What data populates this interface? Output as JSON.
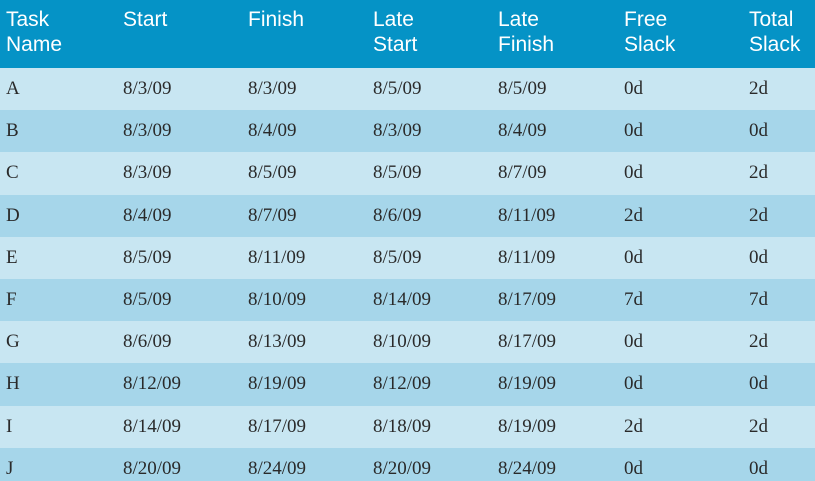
{
  "header": {
    "columns": [
      "Task\nName",
      "Start",
      "Finish",
      "Late\nStart",
      "Late\nFinish",
      "Free\nSlack",
      "Total\nSlack"
    ]
  },
  "colors": {
    "header_bg": "#0593c6",
    "row_light": "#c8e6f2",
    "row_dark": "#a6d6ea"
  },
  "rows": [
    [
      "A",
      "8/3/09",
      "8/3/09",
      "8/5/09",
      "8/5/09",
      "0d",
      "2d"
    ],
    [
      "B",
      "8/3/09",
      "8/4/09",
      "8/3/09",
      "8/4/09",
      "0d",
      "0d"
    ],
    [
      "C",
      "8/3/09",
      "8/5/09",
      "8/5/09",
      "8/7/09",
      "0d",
      "2d"
    ],
    [
      "D",
      "8/4/09",
      "8/7/09",
      "8/6/09",
      "8/11/09",
      "2d",
      "2d"
    ],
    [
      "E",
      "8/5/09",
      "8/11/09",
      "8/5/09",
      "8/11/09",
      "0d",
      "0d"
    ],
    [
      "F",
      "8/5/09",
      "8/10/09",
      "8/14/09",
      "8/17/09",
      "7d",
      "7d"
    ],
    [
      "G",
      "8/6/09",
      "8/13/09",
      "8/10/09",
      "8/17/09",
      "0d",
      "2d"
    ],
    [
      "H",
      "8/12/09",
      "8/19/09",
      "8/12/09",
      "8/19/09",
      "0d",
      "0d"
    ],
    [
      "I",
      "8/14/09",
      "8/17/09",
      "8/18/09",
      "8/19/09",
      "2d",
      "2d"
    ],
    [
      "J",
      "8/20/09",
      "8/24/09",
      "8/20/09",
      "8/24/09",
      "0d",
      "0d"
    ]
  ]
}
